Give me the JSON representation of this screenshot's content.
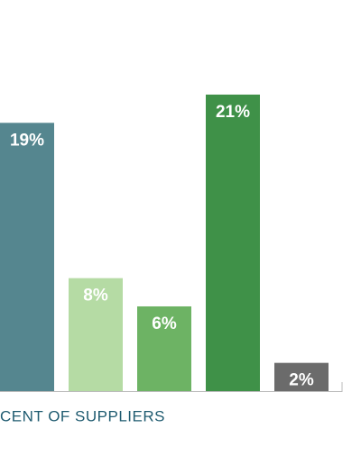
{
  "chart_data": {
    "type": "bar",
    "x_label": "CENT OF SUPPLIERS",
    "categories": [
      null,
      null,
      null,
      null,
      null
    ],
    "values": [
      19,
      8,
      6,
      21,
      2
    ],
    "value_labels": [
      "19%",
      "8%",
      "6%",
      "21%",
      "2%"
    ],
    "colors": [
      "#55868f",
      "#b5dba4",
      "#6db364",
      "#3f9148",
      "#6b6b6b"
    ],
    "ylim": [
      0,
      27.7
    ]
  }
}
